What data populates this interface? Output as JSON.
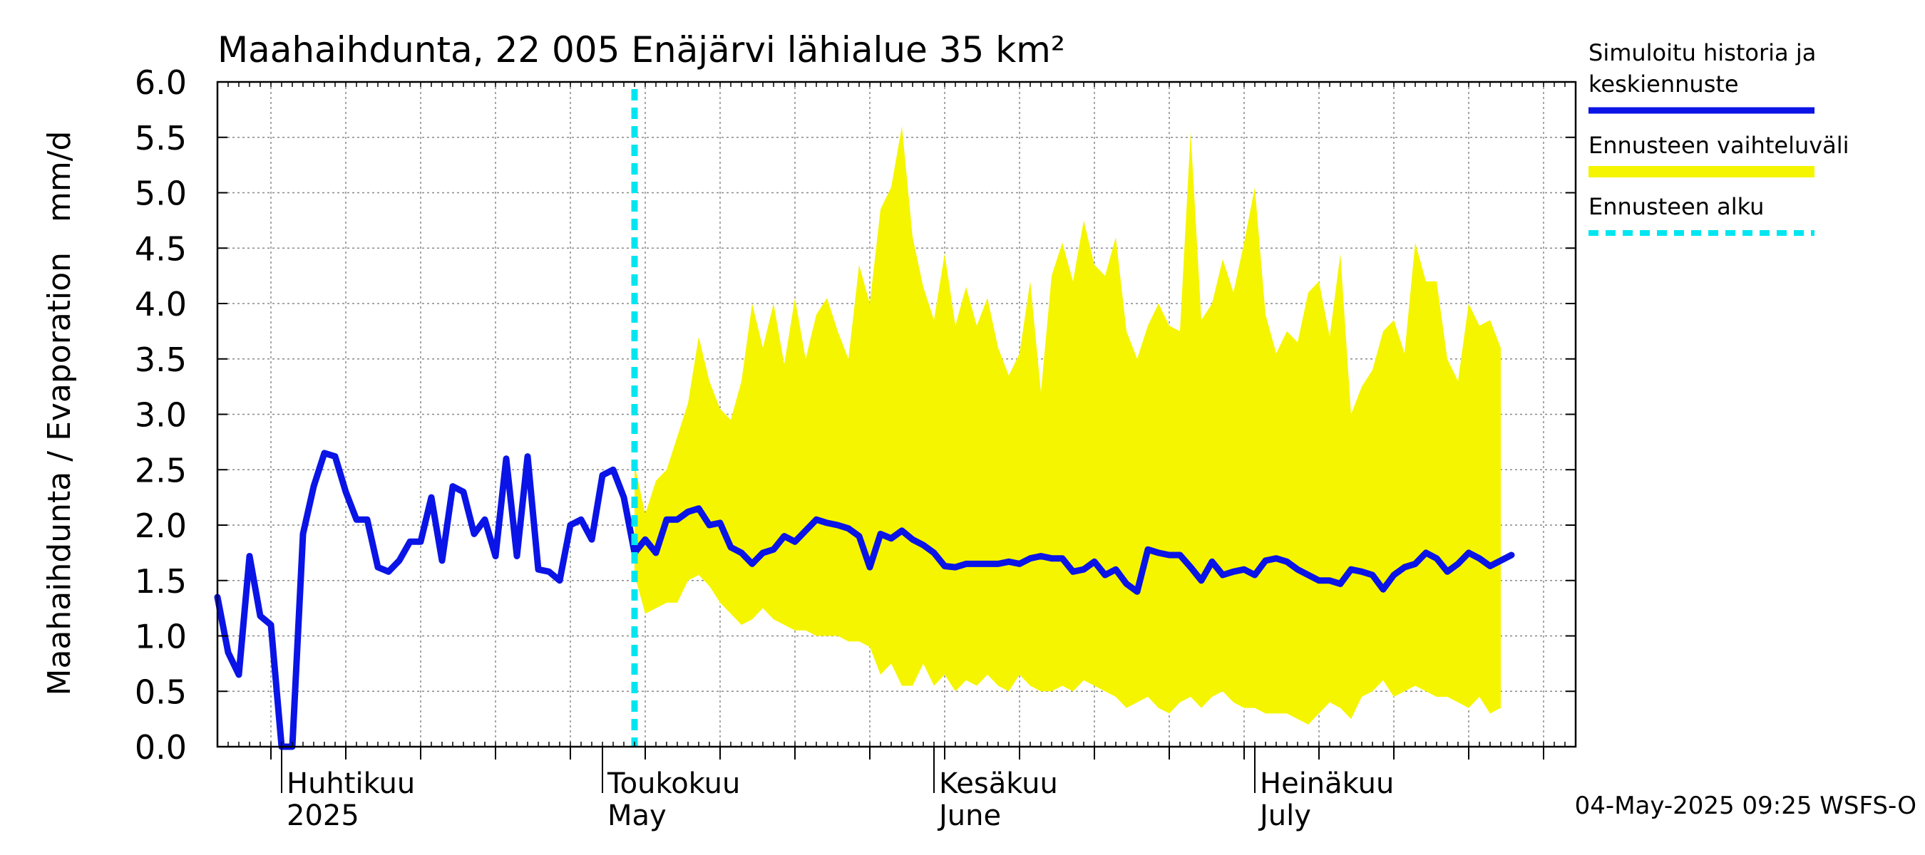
{
  "chart_data": {
    "type": "line",
    "title": "Maahaihdunta, 22 005 Enäjärvi lähialue 35 km²",
    "ylabel": "Maahaihdunta / Evaporation   mm/d",
    "ylim": [
      0,
      6
    ],
    "yticks": [
      "0.0",
      "0.5",
      "1.0",
      "1.5",
      "2.0",
      "2.5",
      "3.0",
      "3.5",
      "4.0",
      "4.5",
      "5.0",
      "5.5",
      "6.0"
    ],
    "xlim": [
      "2025-03-26",
      "2025-07-31"
    ],
    "grid": true,
    "months": [
      {
        "label": "Huhtikuu",
        "sublabel": "2025",
        "date": "2025-04-01"
      },
      {
        "label": "Toukokuu",
        "sublabel": "May",
        "date": "2025-05-01"
      },
      {
        "label": "Kesäkuu",
        "sublabel": "June",
        "date": "2025-06-01"
      },
      {
        "label": "Heinäkuu",
        "sublabel": "July",
        "date": "2025-07-01"
      }
    ],
    "forecast_start": "2025-05-04",
    "legend": {
      "placement": "right",
      "entries": [
        {
          "label_lines": [
            "Simuloitu historia ja",
            "keskiennuste"
          ],
          "color": "#0a14e6",
          "style": "solid"
        },
        {
          "label_lines": [
            "Ennusteen vaihteluväli"
          ],
          "color": "#f5f500",
          "style": "band"
        },
        {
          "label_lines": [
            "Ennusteen alku"
          ],
          "color": "#00e6f0",
          "style": "dashed"
        }
      ]
    },
    "footer": "04-May-2025 09:25 WSFS-O",
    "series": [
      {
        "name": "Simuloitu historia ja keskiennuste",
        "color": "#0a14e6",
        "start_date": "2025-03-26",
        "values": [
          1.35,
          0.85,
          0.65,
          1.72,
          1.18,
          1.1,
          0.0,
          0.0,
          1.92,
          2.35,
          2.65,
          2.62,
          2.3,
          2.05,
          2.05,
          1.62,
          1.58,
          1.68,
          1.85,
          1.85,
          2.25,
          1.68,
          2.35,
          2.3,
          1.92,
          2.05,
          1.72,
          2.6,
          1.72,
          2.62,
          1.6,
          1.58,
          1.5,
          2.0,
          2.05,
          1.87,
          2.45,
          2.5,
          2.25,
          1.75,
          1.87,
          1.75,
          2.05,
          2.05,
          2.12,
          2.15,
          2.0,
          2.02,
          1.8,
          1.75,
          1.65,
          1.75,
          1.78,
          1.9,
          1.85,
          1.95,
          2.05,
          2.02,
          2.0,
          1.97,
          1.9,
          1.62,
          1.92,
          1.88,
          1.95,
          1.87,
          1.82,
          1.75,
          1.63,
          1.62,
          1.65,
          1.65,
          1.65,
          1.65,
          1.67,
          1.65,
          1.7,
          1.72,
          1.7,
          1.7,
          1.58,
          1.6,
          1.67,
          1.55,
          1.6,
          1.47,
          1.4,
          1.78,
          1.75,
          1.73,
          1.73,
          1.62,
          1.5,
          1.67,
          1.55,
          1.58,
          1.6,
          1.55,
          1.68,
          1.7,
          1.67,
          1.6,
          1.55,
          1.5,
          1.5,
          1.47,
          1.6,
          1.58,
          1.55,
          1.42,
          1.55,
          1.62,
          1.65,
          1.75,
          1.7,
          1.58,
          1.65,
          1.75,
          1.7,
          1.63,
          1.68,
          1.73
        ]
      },
      {
        "name": "Ennusteen vaihteluväli",
        "color": "#f5f500",
        "start_date": "2025-05-04",
        "upper": [
          2.55,
          2.1,
          2.4,
          2.5,
          2.8,
          3.1,
          3.7,
          3.3,
          3.05,
          2.95,
          3.3,
          4.0,
          3.6,
          4.0,
          3.45,
          4.05,
          3.5,
          3.9,
          4.05,
          3.75,
          3.5,
          4.35,
          4.0,
          4.85,
          5.05,
          5.6,
          4.6,
          4.15,
          3.85,
          4.45,
          3.8,
          4.15,
          3.8,
          4.05,
          3.6,
          3.35,
          3.55,
          4.2,
          3.2,
          4.25,
          4.55,
          4.2,
          4.75,
          4.35,
          4.25,
          4.6,
          3.75,
          3.5,
          3.8,
          4.0,
          3.8,
          3.75,
          5.55,
          3.85,
          4.0,
          4.4,
          4.1,
          4.55,
          5.05,
          3.9,
          3.55,
          3.75,
          3.65,
          4.1,
          4.2,
          3.7,
          4.45,
          3.0,
          3.25,
          3.4,
          3.75,
          3.85,
          3.55,
          4.55,
          4.2,
          4.2,
          3.5,
          3.3,
          4.0,
          3.8,
          3.85,
          3.6
        ],
        "lower": [
          1.55,
          1.2,
          1.25,
          1.3,
          1.3,
          1.5,
          1.55,
          1.45,
          1.3,
          1.2,
          1.1,
          1.15,
          1.25,
          1.15,
          1.1,
          1.05,
          1.05,
          1.0,
          1.0,
          1.0,
          0.95,
          0.95,
          0.9,
          0.65,
          0.75,
          0.55,
          0.55,
          0.75,
          0.55,
          0.65,
          0.5,
          0.6,
          0.55,
          0.65,
          0.55,
          0.5,
          0.65,
          0.55,
          0.5,
          0.5,
          0.55,
          0.5,
          0.6,
          0.55,
          0.5,
          0.45,
          0.35,
          0.4,
          0.45,
          0.35,
          0.3,
          0.4,
          0.45,
          0.35,
          0.45,
          0.5,
          0.4,
          0.35,
          0.35,
          0.3,
          0.3,
          0.3,
          0.25,
          0.2,
          0.3,
          0.4,
          0.35,
          0.25,
          0.45,
          0.5,
          0.6,
          0.45,
          0.5,
          0.55,
          0.5,
          0.45,
          0.45,
          0.4,
          0.35,
          0.45,
          0.3,
          0.35
        ]
      }
    ]
  }
}
